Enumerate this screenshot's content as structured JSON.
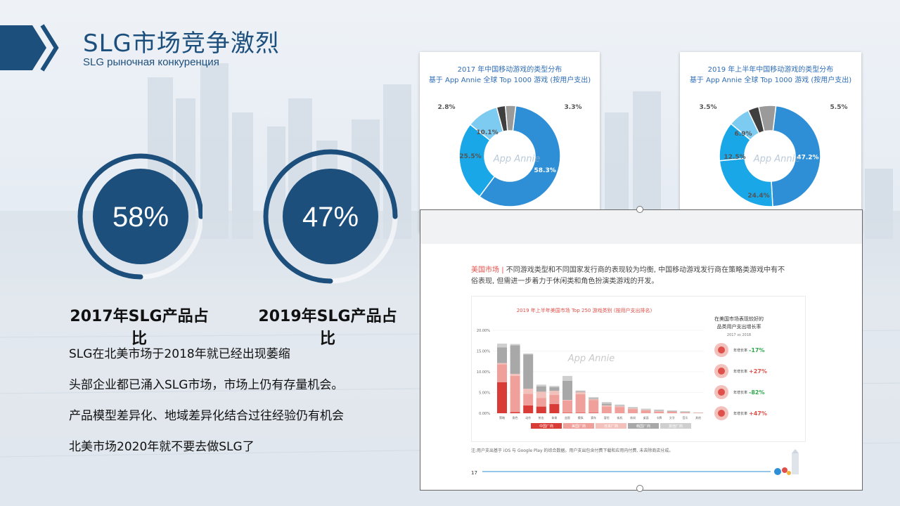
{
  "header": {
    "title": "SLG市场竞争激烈",
    "subtitle": "SLG рыночная конкуренция"
  },
  "rings": [
    {
      "value_text": "58%",
      "fraction": 0.58,
      "label": "2017年SLG产品占比"
    },
    {
      "value_text": "47%",
      "fraction": 0.47,
      "label": "2019年SLG产品占比"
    }
  ],
  "bullets": [
    "SLG在北美市场于2018年就已经出现萎缩",
    "头部企业都已涌入SLG市场，市场上仍有存量机会。",
    "产品模型差异化、地域差异化结合过往经验仍有机会",
    "北美市场2020年就不要去做SLG了"
  ],
  "colors": {
    "brand_blue": "#1d4f7c",
    "strategy": "#2e8fd6",
    "rpg": "#19a7e8",
    "action": "#7ecbf2",
    "shooter": "#3f3f3f",
    "other": "#9a9a9a",
    "china": "#d93b36",
    "us": "#f0a09a",
    "japan": "#f3c1bb",
    "korea": "#a8a8a8",
    "others": "#cfcfcf",
    "green": "#2eaa4a",
    "red": "#e0504a"
  },
  "chart_data": [
    {
      "type": "pie",
      "title": "2017 年中国移动游戏的类型分布",
      "subtitle": "基于 App Annie 全球 Top 1000 游戏 (按用户支出)",
      "labels": [
        "58.3%",
        "25.5%",
        "10.1%",
        "2.8%",
        "3.3%"
      ],
      "values": [
        58.3,
        25.5,
        10.1,
        2.8,
        3.3
      ],
      "watermark": "App Annie"
    },
    {
      "type": "pie",
      "title": "2019 年上半年中国移动游戏的类型分布",
      "subtitle": "基于 App Annie 全球 Top 1000 游戏 (按用户支出)",
      "labels": [
        "47.2%",
        "24.4%",
        "12.5%",
        "6.9%",
        "3.5%",
        "5.5%"
      ],
      "values": [
        47.2,
        24.4,
        12.5,
        6.9,
        3.5,
        5.5
      ],
      "watermark": "App Annie"
    },
    {
      "type": "bar",
      "title": "2019 年上半年美国市场 Top 250 游戏类别 (按用户支出排名)",
      "yticks": [
        "20.00%",
        "15.00%",
        "10.00%",
        "5.00%",
        "0.00%"
      ],
      "ylim": [
        0,
        20
      ],
      "categories": [
        "策略",
        "角色",
        "动作",
        "射击",
        "体育",
        "益智",
        "模拟",
        "赛车",
        "冒险",
        "街机",
        "休闲",
        "桌面",
        "卡牌",
        "文字",
        "音乐",
        "其他"
      ],
      "series": [
        {
          "name": "中国厂商",
          "values": [
            7.5,
            0.3,
            1.9,
            1.6,
            2.2,
            0.1,
            0.1,
            0.1,
            0.0,
            0.0,
            0.0,
            0.0,
            0.0,
            0.0,
            0.0,
            0.0
          ]
        },
        {
          "name": "美国厂商",
          "values": [
            4.3,
            8.7,
            2.8,
            2.1,
            2.2,
            3.0,
            4.5,
            3.1,
            1.6,
            1.5,
            1.0,
            0.7,
            0.4,
            0.4,
            0.2,
            0.1
          ]
        },
        {
          "name": "日本厂商",
          "values": [
            0.3,
            0.5,
            1.2,
            1.5,
            1.0,
            0.1,
            0.5,
            0.2,
            0.3,
            0.2,
            0.2,
            0.1,
            0.1,
            0.0,
            0.0,
            0.0
          ]
        },
        {
          "name": "韩国厂商",
          "values": [
            3.8,
            6.9,
            8.3,
            1.3,
            0.9,
            4.6,
            0.2,
            0.2,
            0.4,
            0.1,
            0.1,
            0.1,
            0.1,
            0.1,
            0.1,
            0.0
          ]
        },
        {
          "name": "其他厂商",
          "values": [
            0.9,
            0.3,
            0.2,
            0.4,
            0.3,
            1.2,
            0.2,
            0.3,
            0.4,
            0.3,
            0.2,
            0.2,
            0.3,
            0.2,
            0.2,
            0.1
          ]
        }
      ],
      "watermark": "App Annie"
    }
  ],
  "report": {
    "lead": "美国市场",
    "sep": "|",
    "text_line1": "不同游戏类型和不同国家发行商的表现较为均衡, 中国移动游戏发行商在策略类游戏中有不",
    "text_line2": "俗表现, 但需进一步着力于休闲类和角色扮演类游戏的开发。",
    "side_title1": "在美国市场表现较好的",
    "side_title2": "品类用户支出增长率",
    "side_sub": "2017 vs 2018",
    "growth": [
      {
        "label": "年增长率",
        "value": "-17%",
        "color": "green"
      },
      {
        "label": "年增长率",
        "value": "+27%",
        "color": "red"
      },
      {
        "label": "年增长率",
        "value": "-82%",
        "color": "green"
      },
      {
        "label": "年增长率",
        "value": "+47%",
        "color": "red"
      }
    ],
    "footnote": "注:用户支出基于 iOS 与 Google Play 的综合数据。用户支出包含付费下载和应用内付费, 未去除商店分成。",
    "page_number": "17"
  }
}
